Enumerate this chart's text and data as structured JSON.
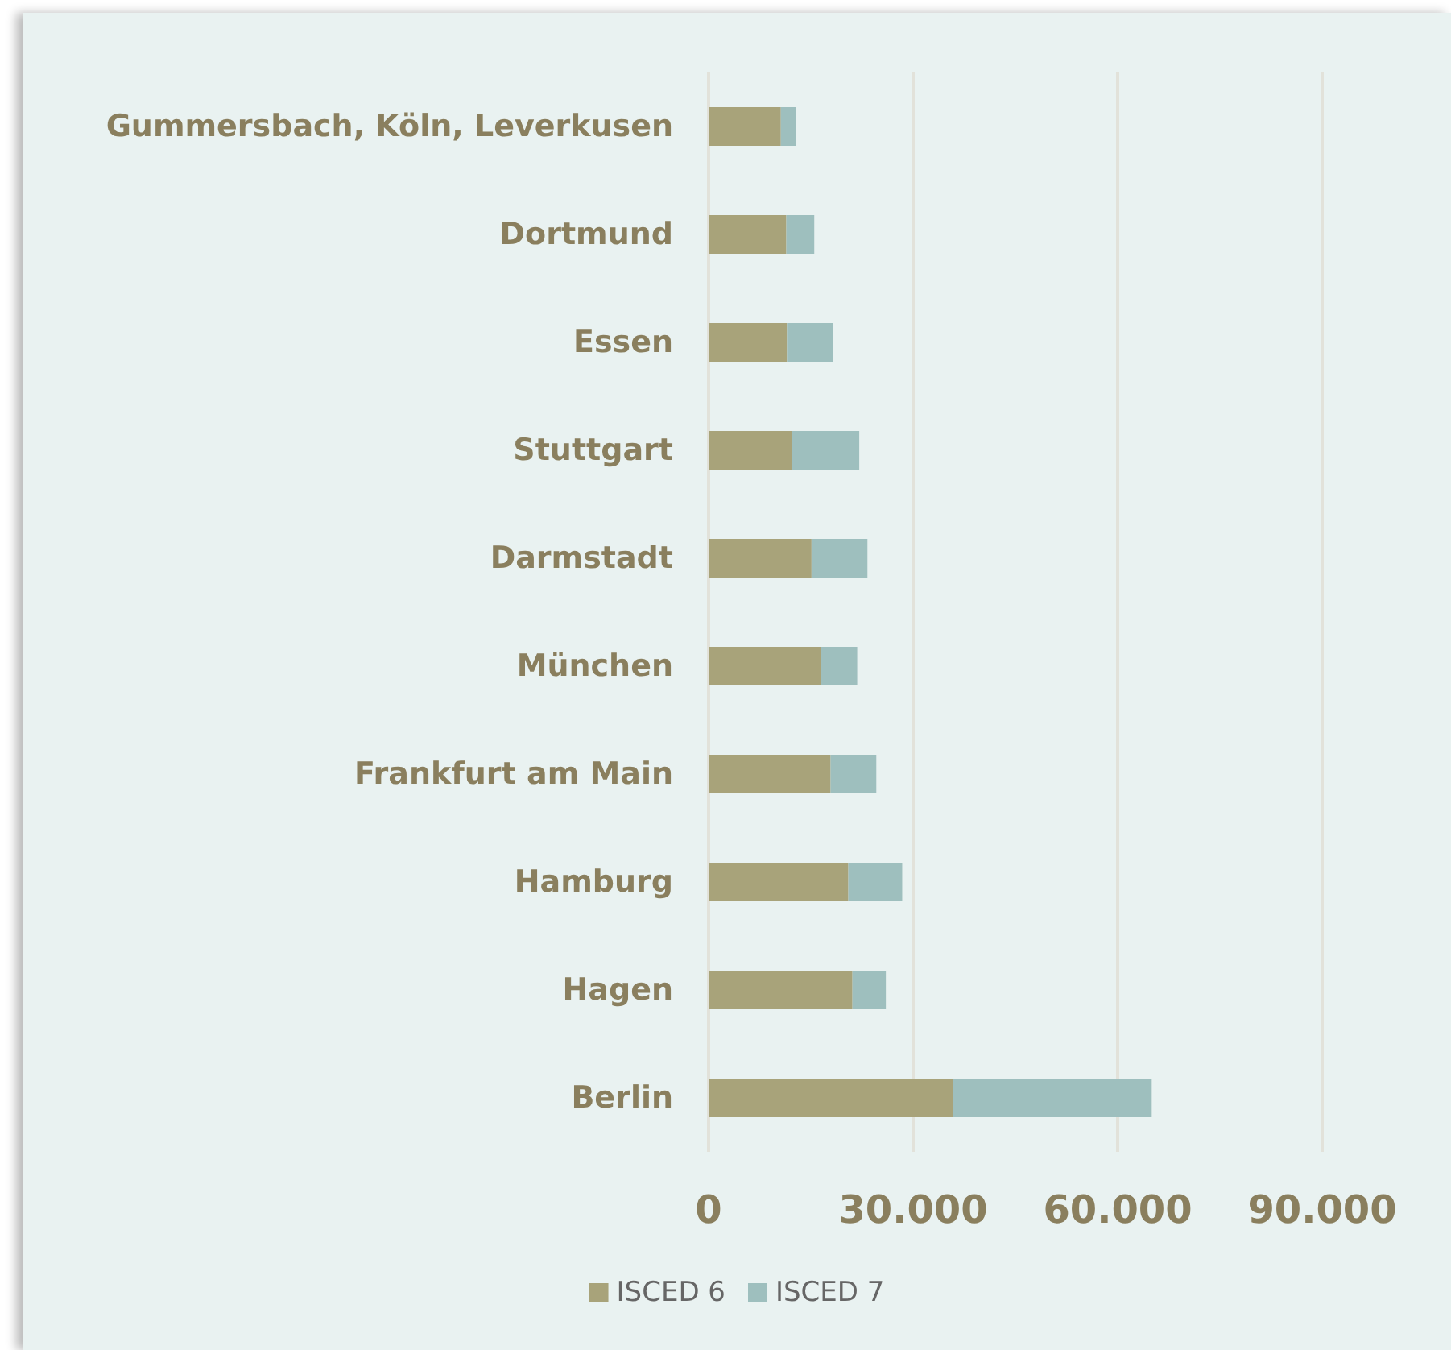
{
  "chart_data": {
    "type": "bar",
    "orientation": "horizontal",
    "stacked": true,
    "categories": [
      "Gummersbach, Köln, Leverkusen",
      "Dortmund",
      "Essen",
      "Stuttgart",
      "Darmstadt",
      "München",
      "Frankfurt am Main",
      "Hamburg",
      "Hagen",
      "Berlin"
    ],
    "series": [
      {
        "name": "ISCED 6",
        "color": "#a8a37a",
        "values": [
          10600,
          11400,
          11500,
          12200,
          15100,
          16500,
          17900,
          20500,
          21100,
          35800
        ]
      },
      {
        "name": "ISCED 7",
        "color": "#9ebfbe",
        "values": [
          2200,
          4100,
          6800,
          9900,
          8200,
          5300,
          6700,
          7900,
          4900,
          29200
        ]
      }
    ],
    "xlim": [
      0,
      90000
    ],
    "xticks": [
      {
        "value": 0,
        "label": "0"
      },
      {
        "value": 30000,
        "label": "30.000"
      },
      {
        "value": 60000,
        "label": "60.000"
      },
      {
        "value": 90000,
        "label": "90.000"
      }
    ],
    "grid": "x",
    "legend": "bottom"
  }
}
